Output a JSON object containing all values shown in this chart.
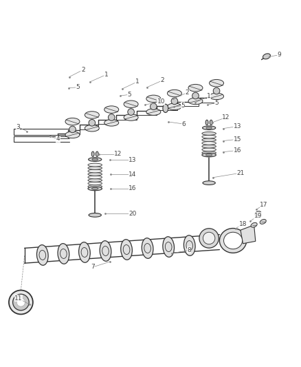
{
  "bg_color": "#ffffff",
  "line_color": "#333333",
  "label_color": "#444444",
  "fig_width": 4.38,
  "fig_height": 5.33,
  "dpi": 100
}
